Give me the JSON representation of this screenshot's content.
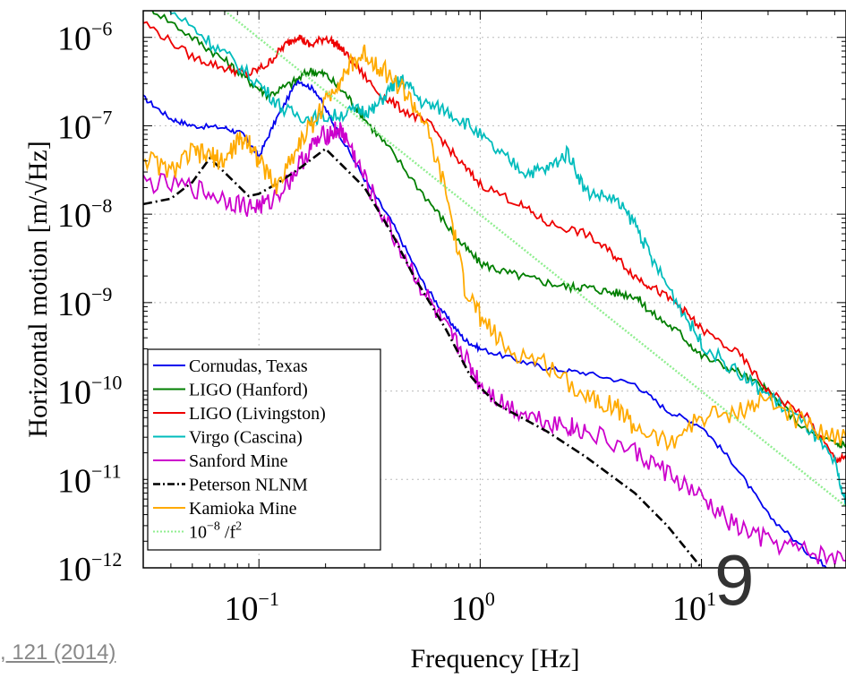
{
  "chart_data": {
    "type": "line",
    "xlabel": "Frequency [Hz]",
    "ylabel": "Horizontal motion [m/√Hz]",
    "x_scale": "log",
    "y_scale": "log",
    "xlim": [
      0.03,
      45
    ],
    "ylim": [
      1e-12,
      2e-06
    ],
    "grid": true,
    "legend_position": "bottom-left",
    "x_ticks": [
      {
        "value": 0.1,
        "base": "10",
        "exp": "−1"
      },
      {
        "value": 1,
        "base": "10",
        "exp": "0"
      },
      {
        "value": 10,
        "base": "10",
        "exp": "1"
      }
    ],
    "y_ticks": [
      {
        "value": 1e-06,
        "base": "10",
        "exp": "−6"
      },
      {
        "value": 1e-07,
        "base": "10",
        "exp": "−7"
      },
      {
        "value": 1e-08,
        "base": "10",
        "exp": "−8"
      },
      {
        "value": 1e-09,
        "base": "10",
        "exp": "−9"
      },
      {
        "value": 1e-10,
        "base": "10",
        "exp": "−10"
      },
      {
        "value": 1e-11,
        "base": "10",
        "exp": "−11"
      },
      {
        "value": 1e-12,
        "base": "10",
        "exp": "−12"
      }
    ],
    "series": [
      {
        "name": "Cornudas, Texas",
        "color": "#0000ee",
        "style": "solid",
        "jitter": 0.03,
        "points": [
          [
            0.03,
            2.1e-07
          ],
          [
            0.04,
            1.2e-07
          ],
          [
            0.05,
            1e-07
          ],
          [
            0.07,
            9.5e-08
          ],
          [
            0.085,
            8e-08
          ],
          [
            0.1,
            4.5e-08
          ],
          [
            0.12,
            1.2e-07
          ],
          [
            0.15,
            3.3e-07
          ],
          [
            0.18,
            2.5e-07
          ],
          [
            0.22,
            1e-07
          ],
          [
            0.3,
            2.5e-08
          ],
          [
            0.4,
            8e-09
          ],
          [
            0.55,
            1.7e-09
          ],
          [
            0.7,
            7e-10
          ],
          [
            0.85,
            3.8e-10
          ],
          [
            1.0,
            3e-10
          ],
          [
            1.5,
            2.2e-10
          ],
          [
            2.0,
            1.8e-10
          ],
          [
            3.0,
            1.6e-10
          ],
          [
            5.0,
            1.2e-10
          ],
          [
            7.0,
            6e-11
          ],
          [
            10,
            4e-11
          ],
          [
            14,
            1.5e-11
          ],
          [
            20,
            4e-12
          ],
          [
            30,
            1.5e-12
          ],
          [
            40,
            9e-13
          ]
        ]
      },
      {
        "name": "LIGO (Hanford)",
        "color": "#007f00",
        "style": "solid",
        "jitter": 0.05,
        "points": [
          [
            0.03,
            2.5e-06
          ],
          [
            0.05,
            1e-06
          ],
          [
            0.07,
            5.5e-07
          ],
          [
            0.09,
            3.2e-07
          ],
          [
            0.11,
            2.2e-07
          ],
          [
            0.14,
            3e-07
          ],
          [
            0.17,
            4.2e-07
          ],
          [
            0.2,
            3.8e-07
          ],
          [
            0.25,
            2.2e-07
          ],
          [
            0.3,
            1.2e-07
          ],
          [
            0.4,
            5e-08
          ],
          [
            0.6,
            1.3e-08
          ],
          [
            0.8,
            5e-09
          ],
          [
            1.0,
            2.8e-09
          ],
          [
            1.3,
            2.2e-09
          ],
          [
            1.8,
            1.8e-09
          ],
          [
            2.5,
            1.5e-09
          ],
          [
            3.0,
            1.5e-09
          ],
          [
            4.0,
            1.3e-09
          ],
          [
            5.0,
            1.2e-09
          ],
          [
            6.0,
            7.5e-10
          ],
          [
            8.0,
            4.5e-10
          ],
          [
            10,
            2.5e-10
          ],
          [
            15,
            1.6e-10
          ],
          [
            20,
            1e-10
          ],
          [
            30,
            3.5e-11
          ],
          [
            40,
            2.5e-11
          ],
          [
            45,
            2.5e-11
          ]
        ]
      },
      {
        "name": "LIGO (Livingston)",
        "color": "#ee0000",
        "style": "solid",
        "jitter": 0.05,
        "points": [
          [
            0.03,
            1.5e-06
          ],
          [
            0.05,
            6e-07
          ],
          [
            0.07,
            4.5e-07
          ],
          [
            0.09,
            3.8e-07
          ],
          [
            0.11,
            5e-07
          ],
          [
            0.13,
            8e-07
          ],
          [
            0.15,
            1.05e-06
          ],
          [
            0.17,
            8e-07
          ],
          [
            0.2,
            1e-06
          ],
          [
            0.23,
            8e-07
          ],
          [
            0.27,
            5e-07
          ],
          [
            0.35,
            2.3e-07
          ],
          [
            0.45,
            1.5e-07
          ],
          [
            0.6,
            1e-07
          ],
          [
            0.8,
            4e-08
          ],
          [
            1.0,
            2.2e-08
          ],
          [
            1.5,
            1.3e-08
          ],
          [
            2.0,
            8e-09
          ],
          [
            3.0,
            6e-09
          ],
          [
            4.0,
            3.5e-09
          ],
          [
            5.0,
            2e-09
          ],
          [
            6.0,
            1.5e-09
          ],
          [
            8.0,
            9e-10
          ],
          [
            10,
            5e-10
          ],
          [
            15,
            2.5e-10
          ],
          [
            20,
            1e-10
          ],
          [
            30,
            5e-11
          ],
          [
            40,
            1.7e-11
          ],
          [
            45,
            1.7e-11
          ]
        ]
      },
      {
        "name": "Virgo (Cascina)",
        "color": "#00bcbc",
        "style": "solid",
        "jitter": 0.08,
        "points": [
          [
            0.03,
            3.5e-06
          ],
          [
            0.05,
            1.3e-06
          ],
          [
            0.07,
            6.5e-07
          ],
          [
            0.1,
            3e-07
          ],
          [
            0.13,
            1.5e-07
          ],
          [
            0.17,
            1.2e-07
          ],
          [
            0.22,
            1.3e-07
          ],
          [
            0.28,
            1.5e-07
          ],
          [
            0.33,
            1.5e-07
          ],
          [
            0.4,
            2.8e-07
          ],
          [
            0.45,
            3.3e-07
          ],
          [
            0.55,
            1.8e-07
          ],
          [
            0.7,
            1.5e-07
          ],
          [
            0.9,
            1e-07
          ],
          [
            1.2,
            5e-08
          ],
          [
            1.6,
            3e-08
          ],
          [
            2.0,
            3.2e-08
          ],
          [
            2.5,
            5e-08
          ],
          [
            3.0,
            1.8e-08
          ],
          [
            4.0,
            1.5e-08
          ],
          [
            5.0,
            8e-09
          ],
          [
            6.0,
            3e-09
          ],
          [
            8.0,
            9e-10
          ],
          [
            10,
            3.5e-10
          ],
          [
            15,
            1.5e-10
          ],
          [
            20,
            9e-11
          ],
          [
            30,
            4e-11
          ],
          [
            40,
            1.5e-11
          ],
          [
            45,
            5e-12
          ]
        ]
      },
      {
        "name": "Sanford Mine",
        "color": "#cc00cc",
        "style": "solid",
        "jitter": 0.12,
        "points": [
          [
            0.03,
            2.3e-08
          ],
          [
            0.05,
            2e-08
          ],
          [
            0.07,
            1.5e-08
          ],
          [
            0.09,
            1.2e-08
          ],
          [
            0.11,
            1.3e-08
          ],
          [
            0.14,
            2.6e-08
          ],
          [
            0.17,
            5.5e-08
          ],
          [
            0.2,
            8e-08
          ],
          [
            0.23,
            9e-08
          ],
          [
            0.25,
            7e-08
          ],
          [
            0.3,
            2.5e-08
          ],
          [
            0.4,
            6e-09
          ],
          [
            0.55,
            1.4e-09
          ],
          [
            0.7,
            5e-10
          ],
          [
            0.85,
            2.5e-10
          ],
          [
            1.0,
            1.2e-10
          ],
          [
            1.3,
            7e-11
          ],
          [
            1.8,
            5e-11
          ],
          [
            2.5,
            4e-11
          ],
          [
            3.0,
            3.5e-11
          ],
          [
            5.0,
            2e-11
          ],
          [
            7.0,
            1.2e-11
          ],
          [
            10,
            6e-12
          ],
          [
            14,
            3e-12
          ],
          [
            20,
            2e-12
          ],
          [
            30,
            1.5e-12
          ],
          [
            45,
            1.2e-12
          ]
        ]
      },
      {
        "name": "Peterson NLNM",
        "color": "#000000",
        "style": "dashdot",
        "jitter": 0,
        "points": [
          [
            0.03,
            1.3e-08
          ],
          [
            0.04,
            1.5e-08
          ],
          [
            0.05,
            2.3e-08
          ],
          [
            0.06,
            4.3e-08
          ],
          [
            0.075,
            2.5e-08
          ],
          [
            0.09,
            1.6e-08
          ],
          [
            0.1,
            1.7e-08
          ],
          [
            0.12,
            2.2e-08
          ],
          [
            0.15,
            3.2e-08
          ],
          [
            0.2,
            5.5e-08
          ],
          [
            0.3,
            2e-08
          ],
          [
            0.4,
            6e-09
          ],
          [
            0.5,
            2e-09
          ],
          [
            0.7,
            5e-10
          ],
          [
            0.9,
            1.5e-10
          ],
          [
            1.0,
            1.1e-10
          ],
          [
            1.2,
            7e-11
          ],
          [
            2.0,
            3.5e-11
          ],
          [
            3.0,
            1.8e-11
          ],
          [
            5.0,
            7e-12
          ],
          [
            7.0,
            3e-12
          ],
          [
            10,
            1e-12
          ]
        ]
      },
      {
        "name": "Kamioka Mine",
        "color": "#ffaa00",
        "style": "solid",
        "jitter": 0.12,
        "points": [
          [
            0.03,
            4.5e-08
          ],
          [
            0.04,
            3e-08
          ],
          [
            0.05,
            5e-08
          ],
          [
            0.06,
            4.5e-08
          ],
          [
            0.07,
            4e-08
          ],
          [
            0.08,
            6.5e-08
          ],
          [
            0.09,
            7e-08
          ],
          [
            0.1,
            4e-08
          ],
          [
            0.12,
            2e-08
          ],
          [
            0.15,
            6e-08
          ],
          [
            0.18,
            1.2e-07
          ],
          [
            0.22,
            2.8e-07
          ],
          [
            0.26,
            4.8e-07
          ],
          [
            0.3,
            6.5e-07
          ],
          [
            0.36,
            4.5e-07
          ],
          [
            0.45,
            2.5e-07
          ],
          [
            0.55,
            1.2e-07
          ],
          [
            0.7,
            1.8e-08
          ],
          [
            0.85,
            1.5e-09
          ],
          [
            1.0,
            7e-10
          ],
          [
            1.3,
            3e-10
          ],
          [
            2.0,
            2e-10
          ],
          [
            3.0,
            9e-11
          ],
          [
            4.0,
            7e-11
          ],
          [
            5.0,
            4e-11
          ],
          [
            7.0,
            2.5e-11
          ],
          [
            10,
            5e-11
          ],
          [
            15,
            6e-11
          ],
          [
            20,
            8e-11
          ],
          [
            30,
            4e-11
          ],
          [
            45,
            3e-11
          ]
        ]
      },
      {
        "name": "10⁻⁸ /f²",
        "color": "#90ee90",
        "style": "dotted",
        "jitter": 0,
        "points": [
          [
            0.07,
            2e-06
          ],
          [
            45,
            4.94e-12
          ]
        ]
      }
    ],
    "legend": [
      {
        "label": "Cornudas, Texas",
        "html_base": "Cornudas, Texas",
        "exp": ""
      },
      {
        "label": "LIGO (Hanford)",
        "html_base": "LIGO (Hanford)",
        "exp": ""
      },
      {
        "label": "LIGO (Livingston)",
        "html_base": "LIGO (Livingston)",
        "exp": ""
      },
      {
        "label": "Virgo (Cascina)",
        "html_base": "Virgo (Cascina)",
        "exp": ""
      },
      {
        "label": "Sanford Mine",
        "html_base": "Sanford Mine",
        "exp": ""
      },
      {
        "label": "Peterson NLNM",
        "html_base": "Peterson NLNM",
        "exp": ""
      },
      {
        "label": "Kamioka Mine",
        "html_base": "Kamioka Mine",
        "exp": ""
      },
      {
        "label": "10⁻⁸ /f²",
        "html_base": "10",
        "exp": "−8",
        "tail": " /f",
        "tail_exp": "2"
      }
    ]
  },
  "footer": {
    "reference_text": ", 121 (2014)",
    "page_number": "9"
  }
}
